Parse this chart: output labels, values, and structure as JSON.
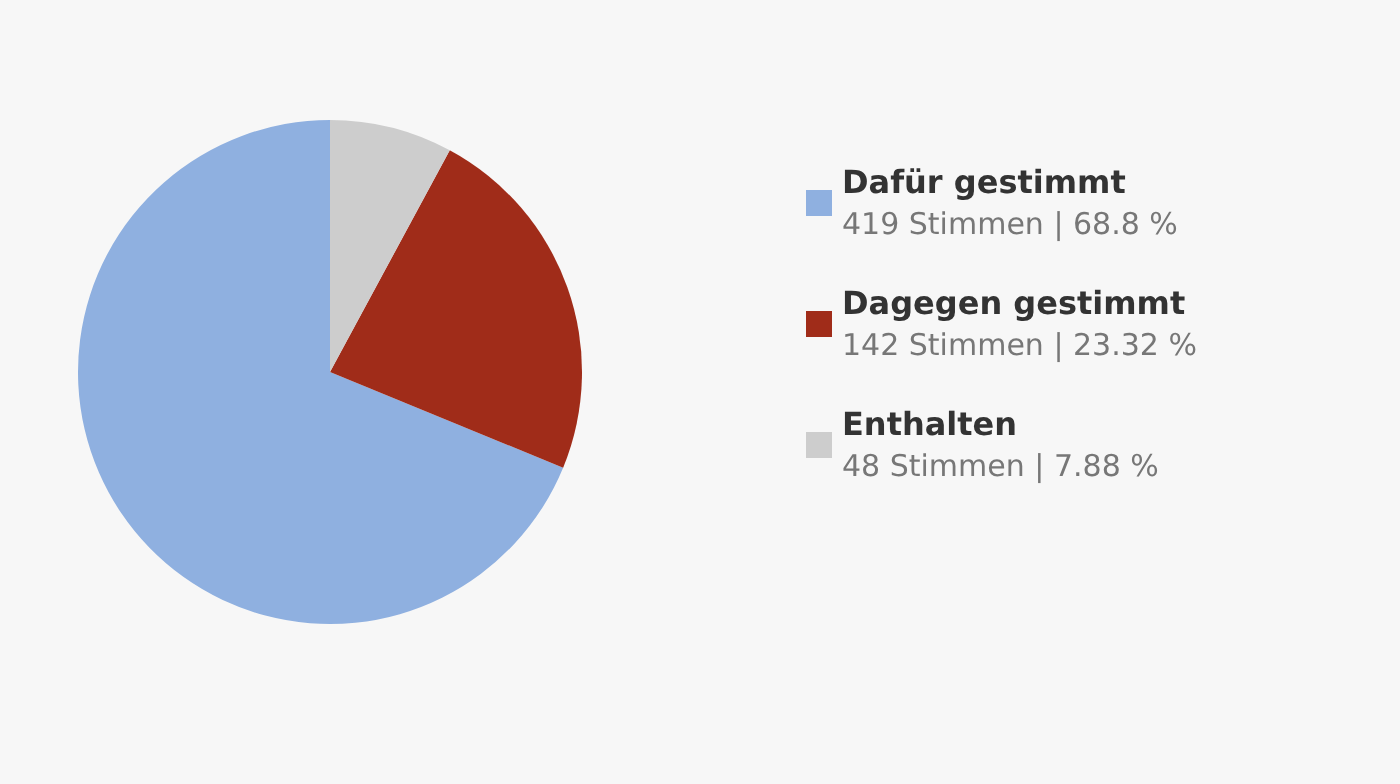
{
  "chart_data": {
    "type": "pie",
    "categories": [
      "Dafür gestimmt",
      "Dagegen gestimmt",
      "Enthalten"
    ],
    "values": [
      419,
      142,
      48
    ],
    "colors": [
      "#8fb0e0",
      "#a02c19",
      "#cdcdcd"
    ],
    "value_labels": [
      "419 Stimmen | 68.8 %",
      "142 Stimmen | 23.32 %",
      "48 Stimmen | 7.88 %"
    ],
    "legend": "right"
  }
}
